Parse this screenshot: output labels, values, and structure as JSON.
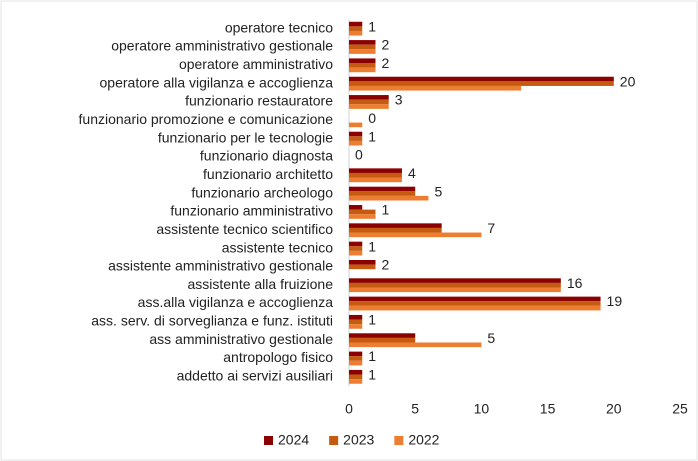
{
  "chart_data": {
    "type": "hbar",
    "categories": [
      "operatore tecnico",
      "operatore amministrativo gestionale",
      "operatore amministrativo",
      "operatore alla vigilanza e accoglienza",
      "funzionario restauratore",
      "funzionario promozione e comunicazione",
      "funzionario per le tecnologie",
      "funzionario diagnosta",
      "funzionario architetto",
      "funzionario archeologo",
      "funzionario amministrativo",
      "assistente tecnico scientifico",
      "assistente tecnico",
      "assistente amministrativo gestionale",
      "assistente alla fruizione",
      "ass.alla vigilanza e accoglienza",
      "ass. serv. di sorveglianza e funz. istituti",
      "ass amministrativo gestionale",
      "antropologo fisico",
      "addetto ai servizi ausiliari"
    ],
    "series": [
      {
        "name": "2024",
        "color": "#8b0000",
        "data_labels": true,
        "values": [
          1,
          2,
          2,
          20,
          3,
          0,
          1,
          0,
          4,
          5,
          1,
          7,
          1,
          2,
          16,
          19,
          1,
          5,
          1,
          1
        ]
      },
      {
        "name": "2023",
        "color": "#c55a11",
        "values": [
          1,
          2,
          2,
          20,
          3,
          0,
          1,
          0,
          4,
          5,
          2,
          7,
          1,
          2,
          16,
          19,
          1,
          5,
          1,
          1
        ]
      },
      {
        "name": "2022",
        "color": "#ed7d31",
        "values": [
          1,
          2,
          2,
          13,
          3,
          1,
          1,
          0,
          4,
          6,
          2,
          10,
          1,
          0,
          16,
          19,
          1,
          10,
          1,
          1
        ]
      }
    ],
    "xlim": [
      0,
      25
    ],
    "xticks": [
      0,
      5,
      10,
      15,
      20,
      25
    ],
    "legend": "bottom"
  }
}
